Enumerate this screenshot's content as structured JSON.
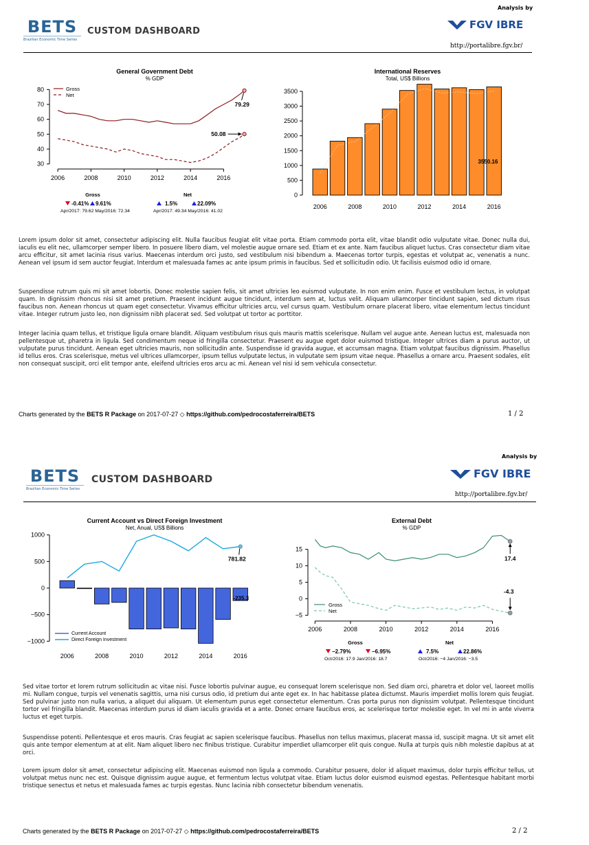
{
  "header": {
    "analysis_by": "Analysis by",
    "bets_word": "BETS",
    "bets_subtitle": "Brazilian Economic Time Series",
    "dashboard_title": "CUSTOM DASHBOARD",
    "fgv_label": "FGV IBRE",
    "url": "http://portalibre.fgv.br/"
  },
  "colors": {
    "bets_blue": "#2a6496",
    "fgv_blue": "#1f4e9a",
    "debt_red": "#8b1a1a",
    "bar_orange": "#ff8c2a",
    "bar_blue": "#4466dd",
    "line_cyan": "#1aa7e0",
    "ext_green": "#3c8c74",
    "ext_light": "#73c6ac"
  },
  "page1": {
    "paragraphs": [
      "Lorem ipsum dolor sit amet, consectetur adipiscing elit. Nulla faucibus feugiat elit vitae porta. Etiam commodo porta elit, vitae blandit odio vulputate vitae. Donec nulla dui, iaculis eu elit nec, ullamcorper semper libero. In posuere libero diam, vel molestie augue ornare sed. Etiam et ex ante. Nam faucibus aliquet luctus. Cras consectetur diam vitae arcu efficitur, sit amet lacinia risus varius. Maecenas interdum orci justo, sed vestibulum nisi bibendum a. Maecenas tortor turpis, egestas et volutpat ac, venenatis a nunc. Aenean vel ipsum id sem auctor feugiat. Interdum et malesuada fames ac ante ipsum primis in faucibus. Sed et sollicitudin odio. Ut facilisis euismod odio id ornare.",
      "Suspendisse rutrum quis mi sit amet lobortis. Donec molestie sapien felis, sit amet ultricies leo euismod vulputate. In non enim enim. Fusce et vestibulum lectus, in volutpat quam. In dignissim rhoncus nisi sit amet pretium. Praesent incidunt augue tincidunt, interdum sem at, luctus velit. Aliquam ullamcorper tincidunt sapien, sed dictum risus faucibus non. Aenean rhoncus ut quam eget consectetur. Vivamus efficitur ultricies arcu, vel cursus quam. Vestibulum ornare placerat libero, vitae elementum lectus tincidunt vitae. Integer rutrum justo leo, non dignissim nibh placerat sed. Sed volutpat ut tortor ac porttitor.",
      "Integer lacinia quam tellus, et tristique ligula ornare blandit. Aliquam vestibulum risus quis mauris mattis scelerisque. Nullam vel augue ante. Aenean luctus est, malesuada non pellentesque ut, pharetra in ligula. Sed condimentum neque id fringilla consectetur. Praesent eu augue eget dolor euismod tristique. Integer ultrices diam a purus auctor, ut vulputate purus tincidunt. Aenean eget ultricies mauris, non sollicitudin ante. Suspendisse id gravida augue, et accumsan magna. Etiam volutpat faucibus dignissim. Phasellus id tellus eros. Cras scelerisque, metus vel ultrices ullamcorper, ipsum tellus vulputate lectus, in vulputate sem ipsum vitae neque. Phasellus a ornare arcu. Praesent sodales, elit non consequat suscipit, orci elit tempor ante, eleifend ultricies eros arcu ac mi. Aenean vel nisi id sem vehicula consectetur."
    ],
    "footer": {
      "prefix": "Charts generated by the",
      "package": "BETS R Package",
      "date": "on 2017-07-27 ◇",
      "link": "https://github.com/pedrocostaferreira/BETS",
      "page": "1 / 2"
    }
  },
  "page2": {
    "paragraphs": [
      "Sed vitae tortor et lorem rutrum sollicitudin ac vitae nisi. Fusce lobortis pulvinar augue, eu consequat lorem scelerisque non. Sed diam orci, pharetra et dolor vel, laoreet mollis mi. Nullam congue, turpis vel venenatis sagittis, urna nisi cursus odio, id pretium dui ante eget ex. In hac habitasse platea dictumst. Mauris imperdiet mollis lorem quis feugiat. Sed pulvinar justo non nulla varius, a aliquet dui aliquam. Ut elementum purus eget consectetur elementum. Cras porta purus non dignissim volutpat. Pellentesque tincidunt tortor vel fringilla blandit. Maecenas interdum purus id diam iaculis gravida et a ante. Donec ornare faucibus eros, ac scelerisque tortor molestie eget. In vel mi in ante viverra luctus et eget turpis.",
      "Suspendisse potenti. Pellentesque et eros mauris. Cras feugiat ac sapien scelerisque faucibus. Phasellus non tellus maximus, placerat massa id, suscipit magna. Ut sit amet elit quis ante tempor elementum at at elit. Nam aliquet libero nec finibus tristique. Curabitur imperdiet ullamcorper elit quis congue. Nulla at turpis quis nibh molestie dapibus at at orci.",
      "Lorem ipsum dolor sit amet, consectetur adipiscing elit. Maecenas euismod non ligula a commodo. Curabitur posuere, dolor id aliquet maximus, dolor turpis efficitur tellus, ut volutpat metus nunc nec est. Quisque dignissim augue augue, et fermentum lectus volutpat vitae. Etiam luctus dolor euismod euismod egestas. Pellentesque habitant morbi tristique senectus et netus et malesuada fames ac turpis egestas. Nunc lacinia nibh consectetur bibendum venenatis."
    ],
    "footer": {
      "prefix": "Charts generated by the",
      "package": "BETS R Package",
      "date": "on 2017-07-27 ◇",
      "link": "https://github.com/pedrocostaferreira/BETS",
      "page": "2 / 2"
    }
  },
  "chart_data": [
    {
      "type": "line",
      "title": "General Government Debt",
      "subtitle": "% GDP",
      "xlim": [
        2005.5,
        2017.6
      ],
      "ylim": [
        28,
        82
      ],
      "xticks": [
        2006,
        2008,
        2010,
        2012,
        2014,
        2016
      ],
      "yticks": [
        30,
        40,
        50,
        60,
        70,
        80
      ],
      "legend": "top-left",
      "series": [
        {
          "name": "Gross",
          "style": "solid",
          "x": [
            2006.0,
            2006.5,
            2007.0,
            2007.5,
            2008.0,
            2008.5,
            2009.0,
            2009.5,
            2010.0,
            2010.5,
            2011.0,
            2011.5,
            2012.0,
            2012.5,
            2013.0,
            2013.5,
            2014.0,
            2014.5,
            2015.0,
            2015.5,
            2016.0,
            2016.5,
            2017.0,
            2017.25
          ],
          "y": [
            66,
            64,
            64,
            63,
            62,
            60,
            59,
            59,
            60,
            60,
            59,
            58,
            59,
            58,
            57,
            57,
            57,
            59,
            63,
            67,
            70,
            73,
            77,
            79.29
          ]
        },
        {
          "name": "Net",
          "style": "dashed",
          "x": [
            2006.0,
            2006.5,
            2007.0,
            2007.5,
            2008.0,
            2008.5,
            2009.0,
            2009.5,
            2010.0,
            2010.5,
            2011.0,
            2011.5,
            2012.0,
            2012.5,
            2013.0,
            2013.5,
            2014.0,
            2014.5,
            2015.0,
            2015.5,
            2016.0,
            2016.5,
            2017.0,
            2017.25
          ],
          "y": [
            47,
            46,
            45,
            43,
            42,
            41,
            40,
            38,
            40,
            39,
            37,
            36,
            35,
            33,
            33,
            32,
            31,
            32,
            34,
            37,
            41,
            45,
            48,
            50.08
          ]
        }
      ],
      "end_labels": [
        "79.29",
        "50.08"
      ],
      "stats": {
        "gross_label": "Gross",
        "net_label": "Net",
        "gross_down": "-0.41%",
        "gross_up": "9.61%",
        "gross_detail": "Apr/2017: 79.62 May/2016: 72.34",
        "net_up1": "1.5%",
        "net_up2": "22.09%",
        "net_detail": "Apr/2017: 49.34 May/2016: 41.02"
      }
    },
    {
      "type": "bar",
      "title": "International Reserves",
      "subtitle": "Total, US$ Billions",
      "categories": [
        "2006",
        "2007",
        "2008",
        "2009",
        "2010",
        "2011",
        "2012",
        "2013",
        "2014",
        "2015",
        "2016"
      ],
      "values": [
        880,
        1820,
        1940,
        2410,
        2900,
        3530,
        3740,
        3580,
        3620,
        3560,
        3650
      ],
      "ylim": [
        0,
        3800
      ],
      "yticks": [
        0,
        500,
        1000,
        1500,
        2000,
        2500,
        3000,
        3500
      ],
      "xticks": [
        "2006",
        "2008",
        "2010",
        "2012",
        "2014",
        "2016"
      ],
      "annotation": "3550.16"
    },
    {
      "type": "bar",
      "title": "Current Account vs Direct Foreign Investment",
      "subtitle": "Net, Anual, US$ Billions",
      "categories": [
        "2006",
        "2007",
        "2008",
        "2009",
        "2010",
        "2011",
        "2012",
        "2013",
        "2014",
        "2015",
        "2016"
      ],
      "series": [
        {
          "name": "Current Account",
          "values": [
            140,
            -10,
            -300,
            -270,
            -770,
            -770,
            -750,
            -770,
            -1040,
            -590,
            -235.3
          ]
        },
        {
          "name": "Direct Foreign Investment",
          "values": [
            190,
            450,
            500,
            320,
            880,
            1000,
            880,
            700,
            950,
            740,
            781.82
          ]
        }
      ],
      "ylim": [
        -1060,
        1060
      ],
      "yticks": [
        -1000,
        -500,
        0,
        500,
        1000
      ],
      "xticks": [
        "2006",
        "2008",
        "2010",
        "2012",
        "2014",
        "2016"
      ],
      "legend": "bottom-left",
      "end_labels": [
        "781.82",
        "-235.3"
      ]
    },
    {
      "type": "line",
      "title": "External Debt",
      "subtitle": "% GDP",
      "xlim": [
        2005.6,
        2017.3
      ],
      "ylim": [
        -5.5,
        19.5
      ],
      "xticks": [
        2006,
        2008,
        2010,
        2012,
        2014,
        2016
      ],
      "yticks": [
        -5,
        0,
        5,
        10,
        15
      ],
      "legend": "bottom-left",
      "series": [
        {
          "name": "Gross",
          "style": "solid",
          "x": [
            2006.0,
            2006.3,
            2006.6,
            2007.0,
            2007.5,
            2008.0,
            2008.5,
            2009.0,
            2009.3,
            2009.6,
            2010.0,
            2010.5,
            2011.0,
            2011.5,
            2012.0,
            2012.5,
            2013.0,
            2013.5,
            2014.0,
            2014.5,
            2015.0,
            2015.5,
            2016.0,
            2016.5,
            2017.0
          ],
          "y": [
            18,
            16,
            15.5,
            16,
            15.5,
            14,
            13.5,
            12,
            13,
            14,
            12,
            11.5,
            12,
            12.5,
            12,
            12.5,
            13.5,
            13.5,
            12.5,
            13,
            14,
            15.5,
            19,
            19.2,
            17.4
          ]
        },
        {
          "name": "Net",
          "style": "dashed",
          "x": [
            2006.0,
            2006.3,
            2006.6,
            2007.0,
            2007.5,
            2008.0,
            2008.5,
            2009.0,
            2009.3,
            2009.6,
            2010.0,
            2010.5,
            2011.0,
            2011.5,
            2012.0,
            2012.5,
            2013.0,
            2013.5,
            2014.0,
            2014.5,
            2015.0,
            2015.5,
            2016.0,
            2016.5,
            2017.0
          ],
          "y": [
            9.5,
            8,
            7,
            6.5,
            3,
            -1,
            -1.5,
            -2,
            -2.5,
            -3,
            -3.5,
            -2,
            -2.5,
            -3,
            -2.8,
            -2.5,
            -3.2,
            -2.8,
            -3.5,
            -2.5,
            -2.8,
            -2,
            -3.2,
            -3.8,
            -4.3
          ]
        }
      ],
      "end_labels": [
        "17.4",
        "-4.3"
      ],
      "stats": {
        "gross_label": "Gross",
        "net_label": "Net",
        "gross_down1": "-2.79%",
        "gross_down2": "-6.95%",
        "gross_detail": "Oct/2016: 17.9  Jan/2016: 18.7",
        "net_up1": "7.5%",
        "net_up2": "22.86%",
        "net_detail": "Oct/2016: -4  Jan/2016: -3.5"
      }
    }
  ]
}
